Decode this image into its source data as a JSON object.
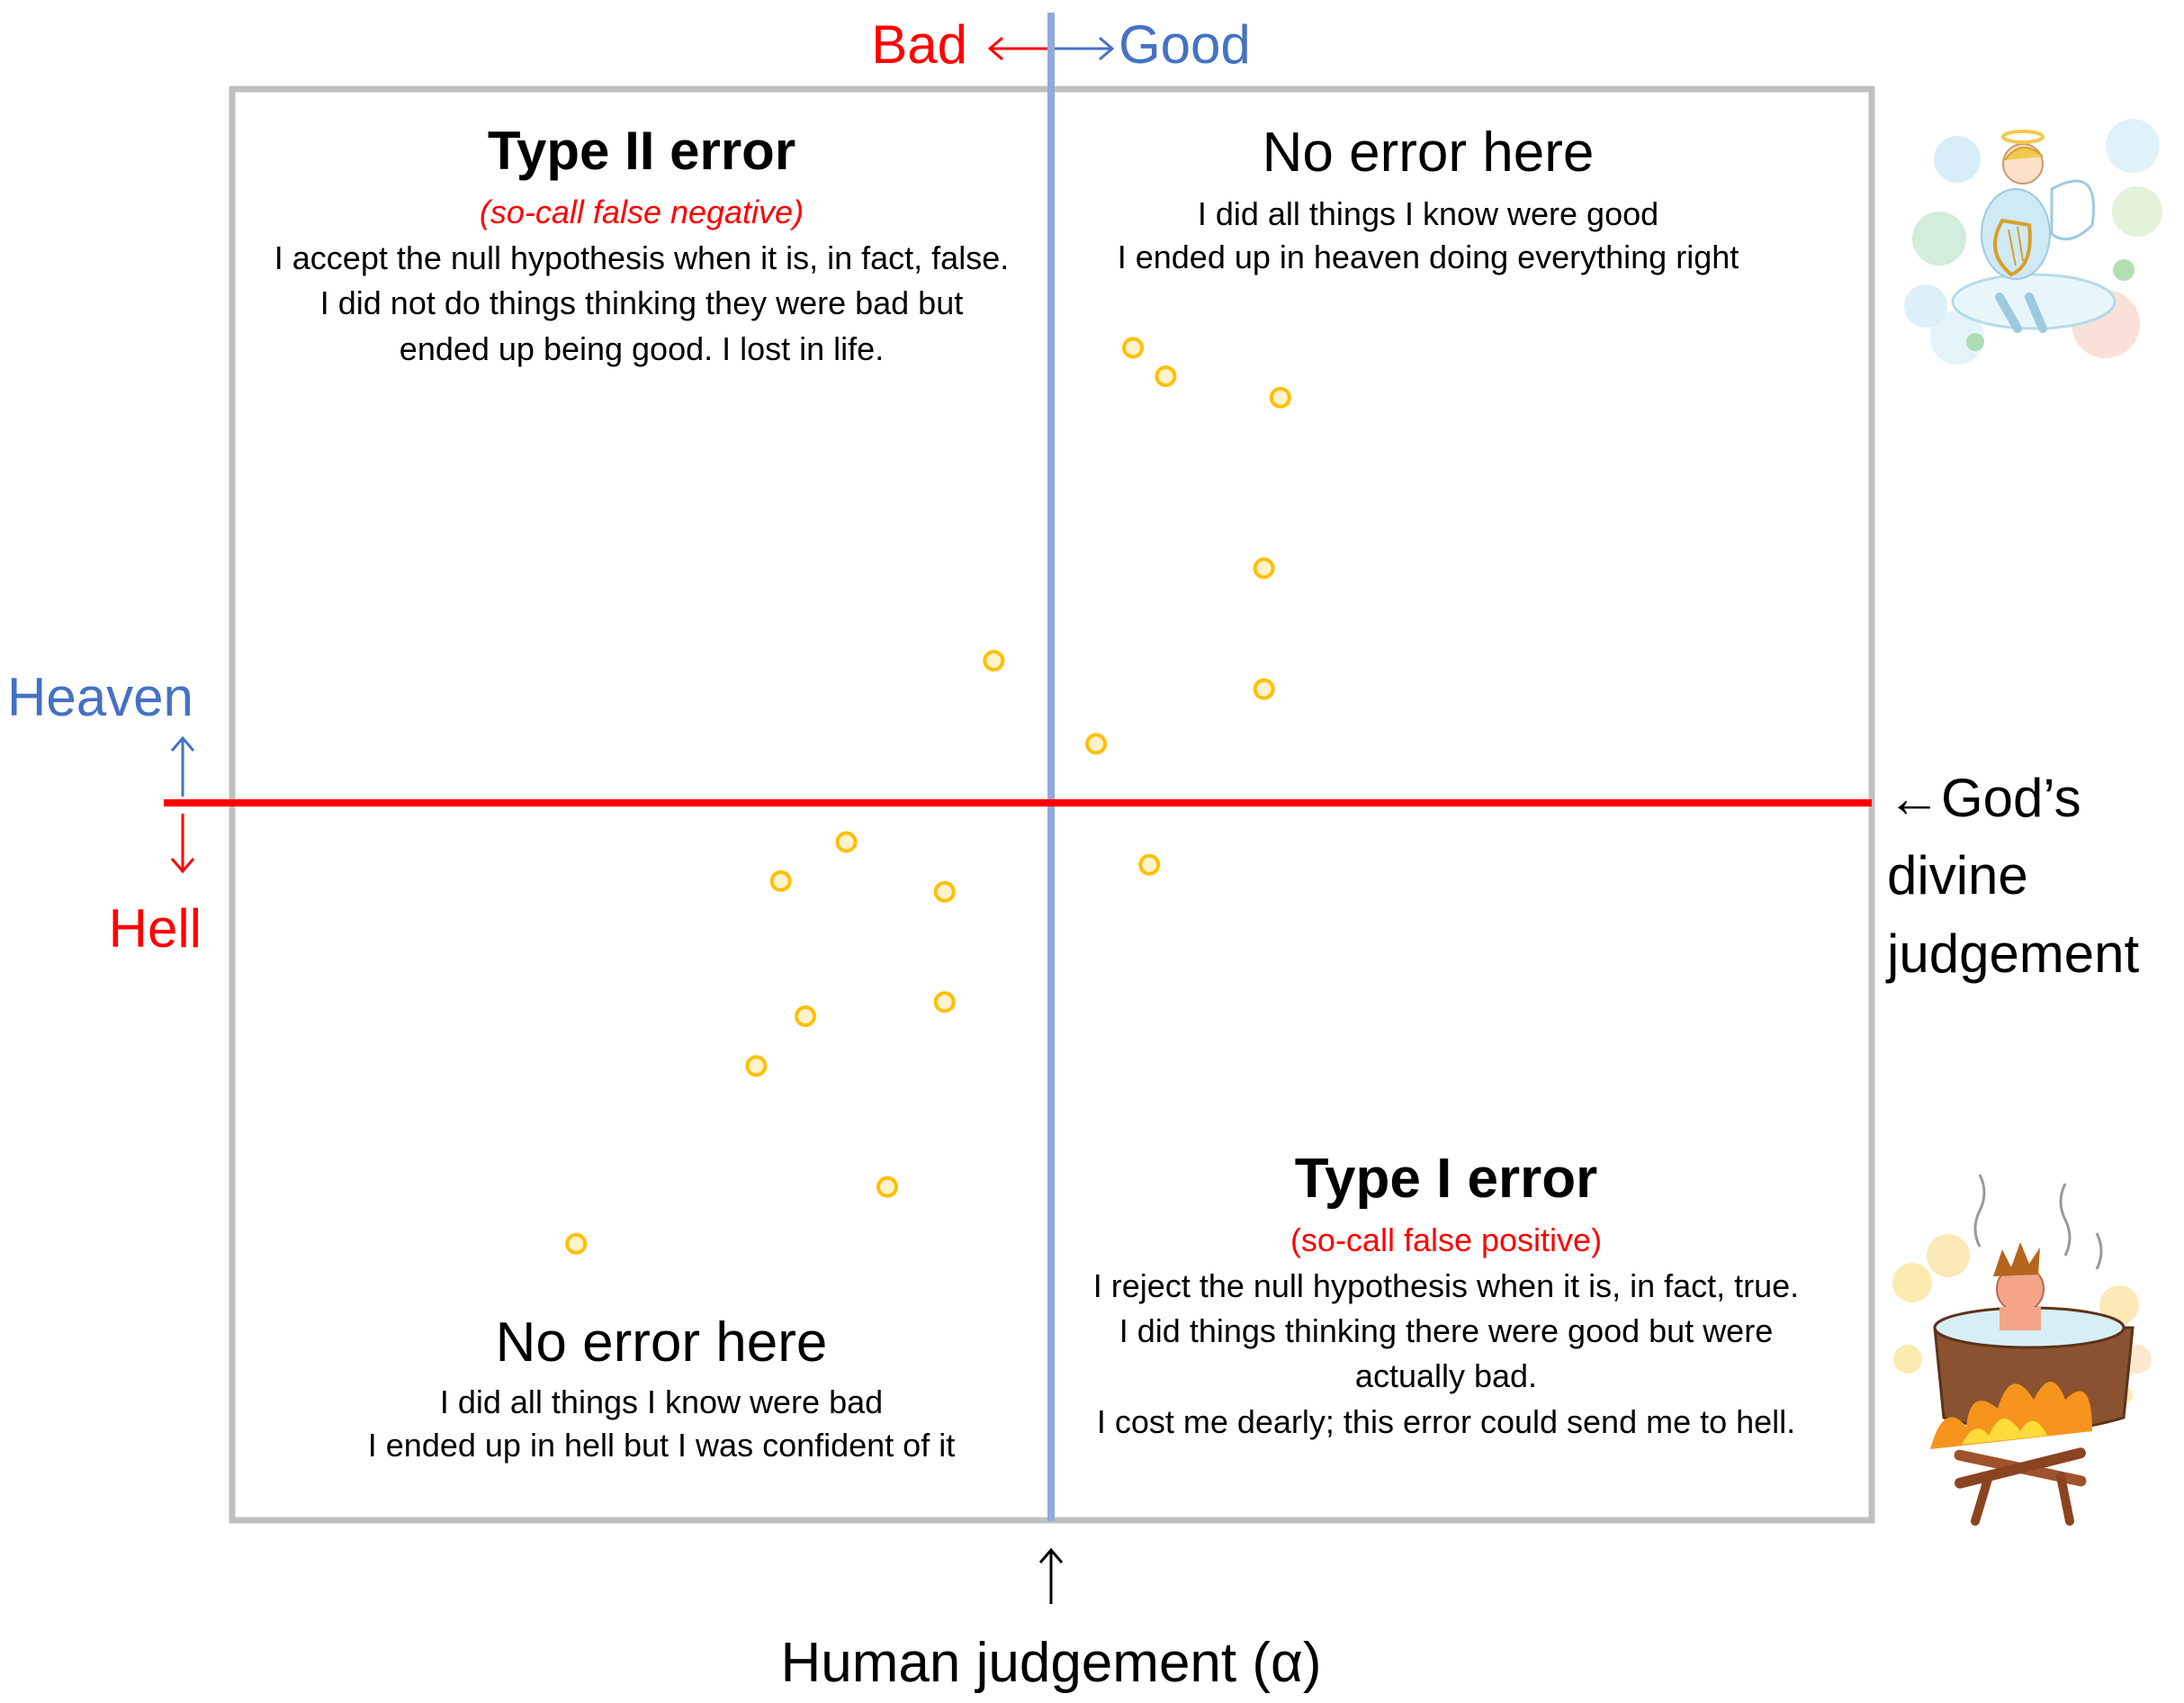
{
  "colors": {
    "bad": "#ff0000",
    "good": "#4472c4",
    "frame": "#bfbfbf",
    "vertical_line": "#8faadc",
    "horizontal_line": "#ff0000",
    "point_stroke": "#ffc000",
    "point_fill": "#fff2cc",
    "text": "#000000",
    "error_subtitle": "#ff0000"
  },
  "header": {
    "bad": "Bad",
    "arrows": "←→",
    "good": "Good"
  },
  "left_axis": {
    "heaven": "Heaven",
    "hell": "Hell"
  },
  "right_axis": {
    "lines": [
      "←God’s",
      "divine",
      "judgement"
    ]
  },
  "bottom_axis": {
    "arrow": "↑",
    "label": "Human judgement (α)"
  },
  "quadrants": {
    "top_left": {
      "title": "Type II error",
      "subtitle": "(so-call false negative)",
      "lines": [
        "I accept the null hypothesis when it is, in fact, false.",
        "I did not do things thinking they were bad but",
        "ended up being good. I lost in life."
      ]
    },
    "top_right": {
      "title": "No error here",
      "lines": [
        "I did all things I know were good",
        "I ended up in heaven doing everything right"
      ]
    },
    "bottom_left": {
      "title": "No error here",
      "lines": [
        "I did all things I know were bad",
        "I ended up in hell but I was confident of it"
      ]
    },
    "bottom_right": {
      "title": "Type I error",
      "subtitle": "(so-call false positive)",
      "lines": [
        "I reject the null hypothesis when it is, in fact, true.",
        "I did things thinking there were good but  were",
        "actually bad.",
        "I cost me dearly; this error could send me to hell."
      ]
    }
  },
  "points": [
    {
      "x": 0.14,
      "y": 0.6
    },
    {
      "x": 0.28,
      "y": 0.57
    },
    {
      "x": 0.1,
      "y": 0.64
    },
    {
      "x": 0.26,
      "y": 0.16
    },
    {
      "x": 0.26,
      "y": 0.33
    },
    {
      "x": 0.055,
      "y": 0.083
    },
    {
      "x": -0.07,
      "y": 0.2
    },
    {
      "x": 0.12,
      "y": -0.087
    },
    {
      "x": -0.25,
      "y": -0.055
    },
    {
      "x": -0.13,
      "y": -0.125
    },
    {
      "x": -0.33,
      "y": -0.11
    },
    {
      "x": -0.3,
      "y": -0.3
    },
    {
      "x": -0.13,
      "y": -0.28
    },
    {
      "x": -0.36,
      "y": -0.37
    },
    {
      "x": -0.58,
      "y": -0.62
    },
    {
      "x": -0.2,
      "y": -0.54
    }
  ],
  "illustrations": {
    "top": "angel-with-harp",
    "bottom": "person-in-boiling-cauldron"
  }
}
